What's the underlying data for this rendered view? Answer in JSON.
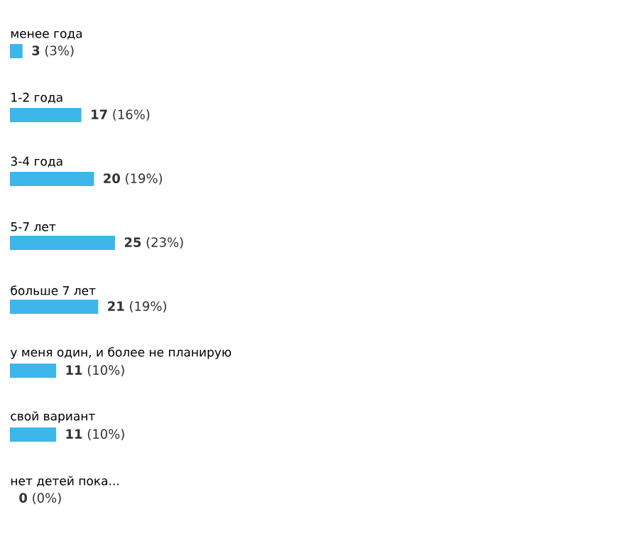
{
  "chart_data": {
    "type": "bar",
    "orientation": "horizontal",
    "color": "#3db6ea",
    "categories": [
      "менее года",
      "1-2 года",
      "3-4 года",
      "5-7 лет",
      "больше 7 лет",
      "у меня один, и более не планирую",
      "свой вариант",
      "нет детей пока..."
    ],
    "values": [
      3,
      17,
      20,
      25,
      21,
      11,
      11,
      0
    ],
    "value_labels": [
      "**3** (3%)",
      "**17** (16%)",
      "**20** (19%)",
      "**25** (23%)",
      "**21** (19%)",
      "**11** (10%)",
      "**11** (10%)",
      "**0** (0%)"
    ]
  }
}
